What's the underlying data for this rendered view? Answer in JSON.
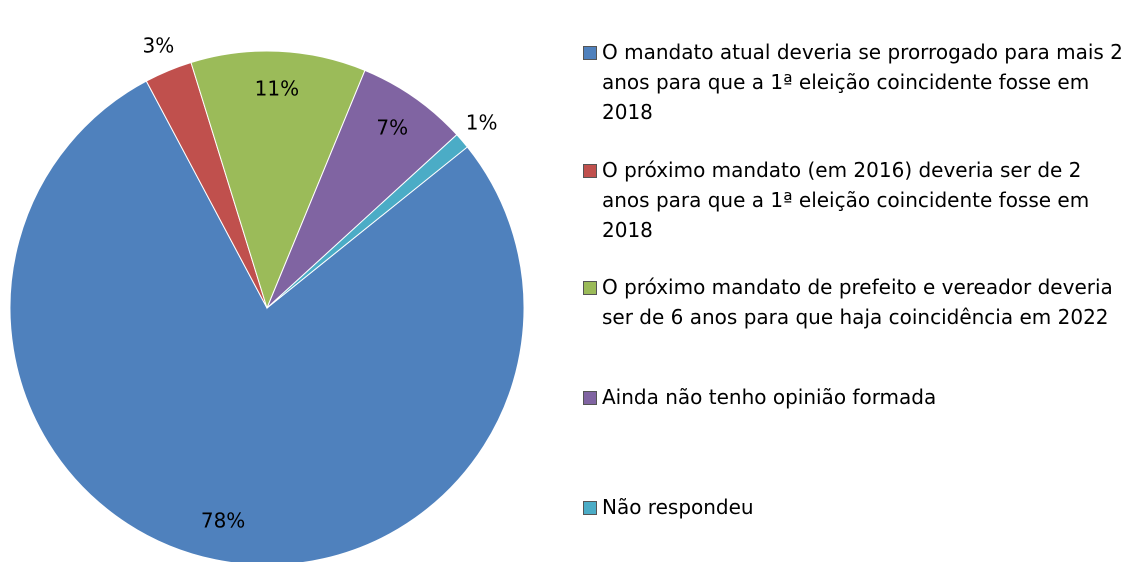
{
  "chart_data": {
    "type": "pie",
    "categories": [
      "O mandato atual deveria se prorrogado para mais 2 anos para que a 1ª eleição coincidente fosse em 2018",
      "O próximo mandato (em 2016) deveria ser de 2 anos para que a 1ª eleição coincidente fosse em 2018",
      "O próximo mandato de prefeito e vereador deveria ser de 6 anos para que haja coincidência em 2022",
      "Ainda não tenho opinião formada",
      "Não respondeu"
    ],
    "values": [
      78,
      3,
      11,
      7,
      1
    ],
    "value_labels": [
      "78%",
      "3%",
      "11%",
      "7%",
      "1%"
    ],
    "colors": [
      "#4f81bd",
      "#c0504d",
      "#9bbb59",
      "#8064a2",
      "#4bacc6"
    ],
    "legend": "right"
  }
}
